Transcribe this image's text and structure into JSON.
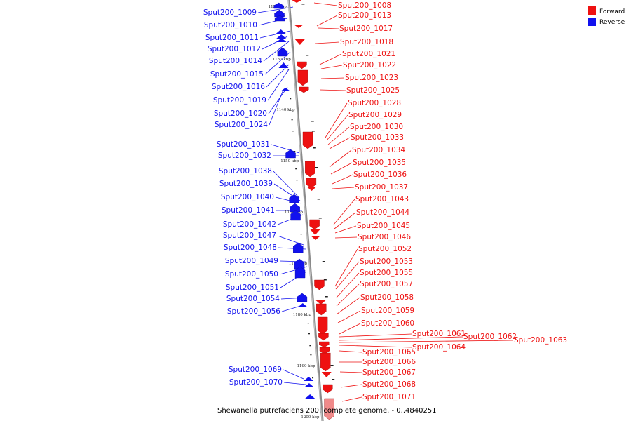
{
  "caption": "Shewanella putrefaciens 200, complete genome. - 0..4840251",
  "legend": [
    {
      "label": "Forward",
      "color": "#ee1111"
    },
    {
      "label": "Reverse",
      "color": "#1111ee"
    }
  ],
  "colors": {
    "forward": "#ee1111",
    "reverse": "#1111ee",
    "axis": "#999999"
  },
  "ticks": [
    "1120 kbp",
    "1130 kbp",
    "1140 kbp",
    "1150 kbp",
    "1160 kbp",
    "1170 kbp",
    "1180 kbp",
    "1190 kbp",
    "1200 kbp"
  ],
  "reverse_genes": [
    "Sput200_1009",
    "Sput200_1010",
    "Sput200_1011",
    "Sput200_1012",
    "Sput200_1014",
    "Sput200_1015",
    "Sput200_1016",
    "Sput200_1019",
    "Sput200_1020",
    "Sput200_1024",
    "Sput200_1031",
    "Sput200_1032",
    "Sput200_1038",
    "Sput200_1039",
    "Sput200_1040",
    "Sput200_1041",
    "Sput200_1042",
    "Sput200_1047",
    "Sput200_1048",
    "Sput200_1049",
    "Sput200_1050",
    "Sput200_1051",
    "Sput200_1054",
    "Sput200_1056",
    "Sput200_1069",
    "Sput200_1070"
  ],
  "forward_genes": [
    "Sput200_1008",
    "Sput200_1013",
    "Sput200_1017",
    "Sput200_1018",
    "Sput200_1021",
    "Sput200_1022",
    "Sput200_1023",
    "Sput200_1025",
    "Sput200_1028",
    "Sput200_1029",
    "Sput200_1030",
    "Sput200_1033",
    "Sput200_1034",
    "Sput200_1035",
    "Sput200_1036",
    "Sput200_1037",
    "Sput200_1043",
    "Sput200_1044",
    "Sput200_1045",
    "Sput200_1046",
    "Sput200_1052",
    "Sput200_1053",
    "Sput200_1055",
    "Sput200_1057",
    "Sput200_1058",
    "Sput200_1059",
    "Sput200_1060",
    "Sput200_1061",
    "Sput200_1062",
    "Sput200_1063",
    "Sput200_1064",
    "Sput200_1065",
    "Sput200_1066",
    "Sput200_1067",
    "Sput200_1068",
    "Sput200_1071"
  ]
}
